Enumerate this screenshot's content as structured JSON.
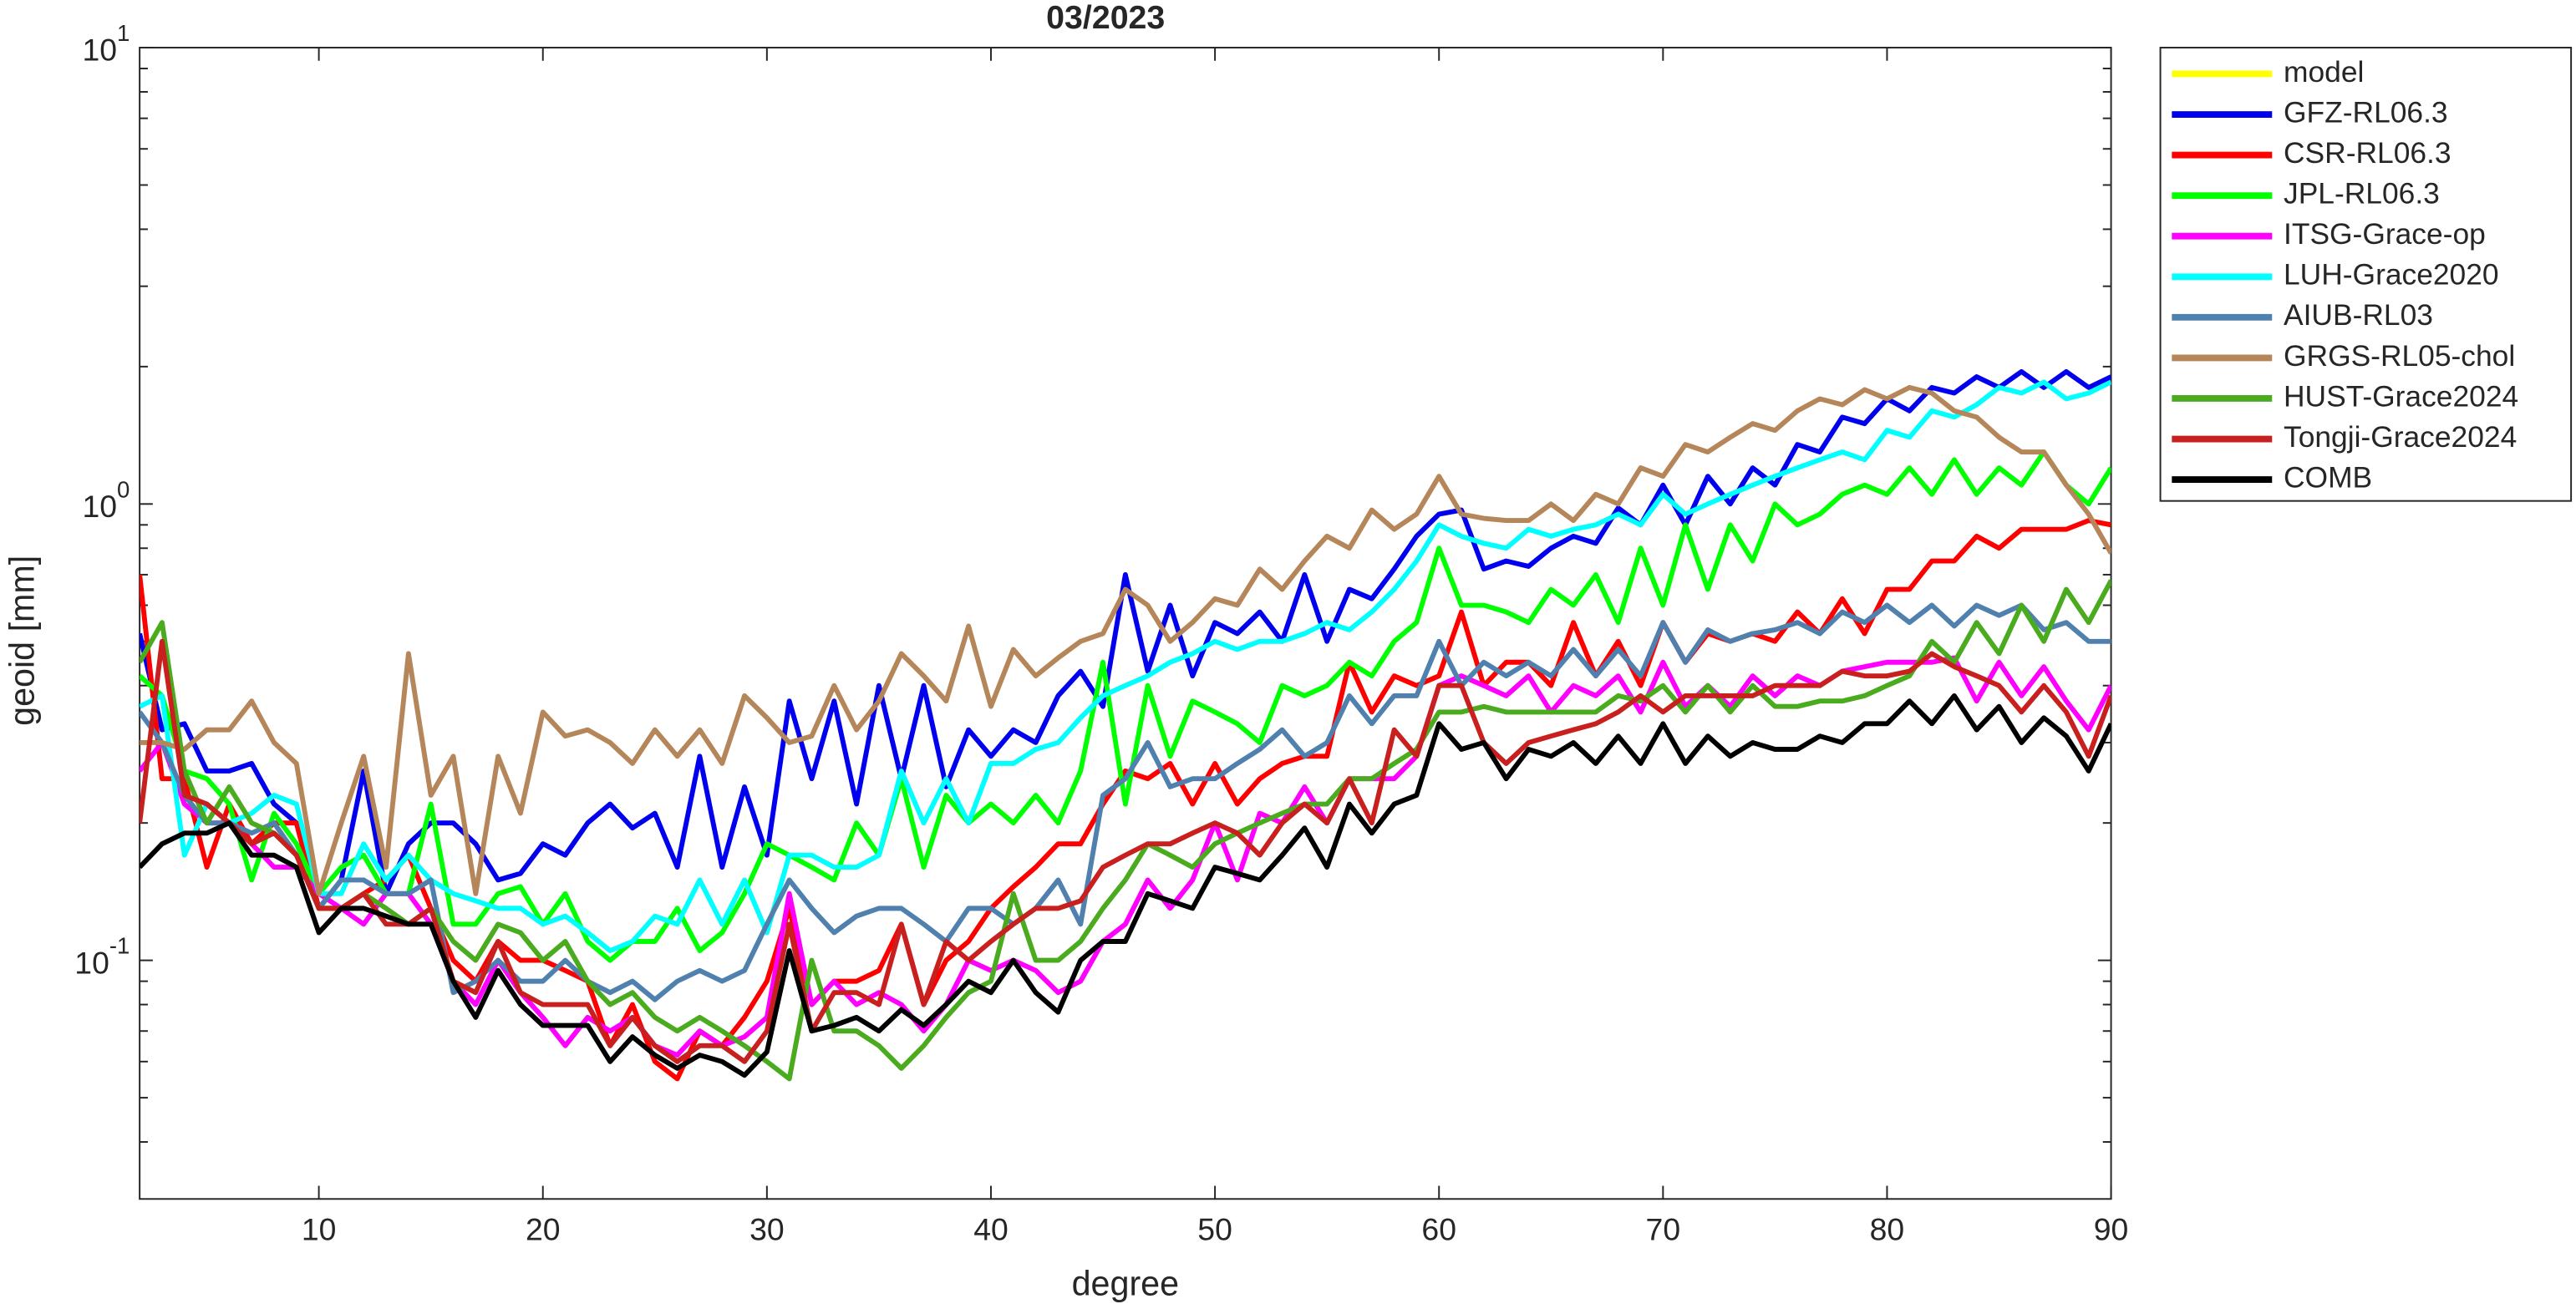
{
  "chart_data": {
    "type": "line",
    "title": "03/2023",
    "xlabel": "degree",
    "ylabel": "geoid [mm]",
    "yscale": "log",
    "xlim": [
      2,
      90
    ],
    "ylim": [
      0.03,
      10
    ],
    "xticks": [
      10,
      20,
      30,
      40,
      50,
      60,
      70,
      80,
      90
    ],
    "yticks": [
      {
        "value": 0.1,
        "label": "10^-1"
      },
      {
        "value": 1,
        "label": "10^0"
      },
      {
        "value": 10,
        "label": "10^1"
      }
    ],
    "yminor_ticks": [
      0.04,
      0.05,
      0.06,
      0.07,
      0.08,
      0.09,
      0.2,
      0.3,
      0.4,
      0.5,
      0.6,
      0.7,
      0.8,
      0.9,
      2,
      3,
      4,
      5,
      6,
      7,
      8,
      9
    ],
    "legend": "outside-top-right",
    "x": [
      2,
      3,
      4,
      5,
      6,
      7,
      8,
      9,
      10,
      11,
      12,
      13,
      14,
      15,
      16,
      17,
      18,
      19,
      20,
      21,
      22,
      23,
      24,
      25,
      26,
      27,
      28,
      29,
      30,
      31,
      32,
      33,
      34,
      35,
      36,
      37,
      38,
      39,
      40,
      41,
      42,
      43,
      44,
      45,
      46,
      47,
      48,
      49,
      50,
      51,
      52,
      53,
      54,
      55,
      56,
      57,
      58,
      59,
      60,
      61,
      62,
      63,
      64,
      65,
      66,
      67,
      68,
      69,
      70,
      71,
      72,
      73,
      74,
      75,
      76,
      77,
      78,
      79,
      80,
      81,
      82,
      83,
      84,
      85,
      86,
      87,
      88,
      89,
      90
    ],
    "series": [
      {
        "name": "model",
        "color": "#ffff00",
        "values": [
          null,
          null,
          null,
          null,
          null,
          null,
          null,
          null,
          null,
          null,
          null,
          null,
          null,
          null,
          null,
          null,
          null,
          null,
          null,
          null,
          null,
          null,
          null,
          null,
          null,
          null,
          null,
          null,
          null,
          null,
          null,
          null,
          null,
          null,
          null,
          null,
          null,
          null,
          null,
          null,
          null,
          null,
          null,
          null,
          null,
          null,
          null,
          null,
          null,
          null,
          null,
          null,
          null,
          null,
          null,
          null,
          null,
          null,
          null,
          null,
          null,
          null,
          null,
          null,
          null,
          null,
          null,
          null,
          null,
          null,
          null,
          null,
          null,
          null,
          null,
          null,
          null,
          null,
          null,
          null,
          null,
          null,
          null,
          null,
          null,
          null,
          null,
          null,
          null
        ]
      },
      {
        "name": "GFZ-RL06.3",
        "color": "#0000ee",
        "values": [
          0.52,
          0.32,
          0.33,
          0.26,
          0.26,
          0.27,
          0.22,
          0.2,
          0.13,
          0.15,
          0.26,
          0.14,
          0.18,
          0.2,
          0.2,
          0.18,
          0.15,
          0.155,
          0.18,
          0.17,
          0.2,
          0.22,
          0.195,
          0.21,
          0.16,
          0.28,
          0.16,
          0.24,
          0.17,
          0.37,
          0.25,
          0.37,
          0.22,
          0.4,
          0.25,
          0.4,
          0.24,
          0.32,
          0.28,
          0.32,
          0.3,
          0.38,
          0.43,
          0.36,
          0.7,
          0.43,
          0.6,
          0.42,
          0.55,
          0.52,
          0.58,
          0.5,
          0.7,
          0.5,
          0.65,
          0.62,
          0.72,
          0.85,
          0.95,
          0.97,
          0.72,
          0.75,
          0.73,
          0.8,
          0.85,
          0.82,
          0.98,
          0.9,
          1.1,
          0.9,
          1.15,
          1.0,
          1.2,
          1.1,
          1.35,
          1.3,
          1.55,
          1.5,
          1.7,
          1.6,
          1.8,
          1.75,
          1.9,
          1.8,
          1.95,
          1.8,
          1.95,
          1.8,
          1.9
        ]
      },
      {
        "name": "CSR-RL06.3",
        "color": "#ff0000",
        "values": [
          0.7,
          0.25,
          0.25,
          0.16,
          0.22,
          0.18,
          0.2,
          0.2,
          0.13,
          0.13,
          0.14,
          0.15,
          0.17,
          0.13,
          0.1,
          0.09,
          0.11,
          0.1,
          0.1,
          0.095,
          0.09,
          0.065,
          0.08,
          0.06,
          0.055,
          0.07,
          0.065,
          0.075,
          0.09,
          0.13,
          0.08,
          0.09,
          0.09,
          0.095,
          0.12,
          0.08,
          0.1,
          0.11,
          0.13,
          0.145,
          0.16,
          0.18,
          0.18,
          0.22,
          0.26,
          0.25,
          0.27,
          0.22,
          0.27,
          0.22,
          0.25,
          0.27,
          0.28,
          0.28,
          0.45,
          0.35,
          0.42,
          0.4,
          0.42,
          0.58,
          0.4,
          0.45,
          0.45,
          0.4,
          0.55,
          0.42,
          0.5,
          0.4,
          0.55,
          0.45,
          0.52,
          0.5,
          0.52,
          0.5,
          0.58,
          0.52,
          0.62,
          0.52,
          0.65,
          0.65,
          0.75,
          0.75,
          0.85,
          0.8,
          0.88,
          0.88,
          0.88,
          0.92,
          0.9
        ]
      },
      {
        "name": "JPL-RL06.3",
        "color": "#00ff00",
        "values": [
          0.42,
          0.38,
          0.26,
          0.25,
          0.22,
          0.15,
          0.21,
          0.18,
          0.14,
          0.16,
          0.17,
          0.14,
          0.14,
          0.22,
          0.12,
          0.12,
          0.14,
          0.145,
          0.12,
          0.14,
          0.11,
          0.1,
          0.11,
          0.11,
          0.13,
          0.105,
          0.115,
          0.14,
          0.18,
          0.17,
          0.16,
          0.15,
          0.2,
          0.17,
          0.25,
          0.16,
          0.23,
          0.2,
          0.22,
          0.2,
          0.23,
          0.2,
          0.26,
          0.45,
          0.22,
          0.4,
          0.28,
          0.37,
          0.35,
          0.33,
          0.3,
          0.4,
          0.38,
          0.4,
          0.45,
          0.42,
          0.5,
          0.55,
          0.8,
          0.6,
          0.6,
          0.58,
          0.55,
          0.65,
          0.6,
          0.7,
          0.55,
          0.8,
          0.6,
          0.9,
          0.65,
          0.9,
          0.75,
          1.0,
          0.9,
          0.95,
          1.05,
          1.1,
          1.05,
          1.2,
          1.05,
          1.25,
          1.05,
          1.2,
          1.1,
          1.3,
          1.1,
          1.0,
          1.2
        ]
      },
      {
        "name": "ITSG-Grace-op",
        "color": "#ff00ff",
        "values": [
          0.26,
          0.3,
          0.22,
          0.2,
          0.2,
          0.18,
          0.16,
          0.16,
          0.14,
          0.13,
          0.12,
          0.14,
          0.14,
          0.12,
          0.09,
          0.08,
          0.1,
          0.085,
          0.075,
          0.065,
          0.075,
          0.07,
          0.075,
          0.065,
          0.062,
          0.07,
          0.065,
          0.068,
          0.075,
          0.14,
          0.08,
          0.09,
          0.08,
          0.085,
          0.08,
          0.07,
          0.08,
          0.1,
          0.095,
          0.1,
          0.095,
          0.085,
          0.09,
          0.11,
          0.12,
          0.15,
          0.13,
          0.15,
          0.2,
          0.15,
          0.21,
          0.2,
          0.24,
          0.2,
          0.25,
          0.25,
          0.25,
          0.28,
          0.4,
          0.42,
          0.4,
          0.38,
          0.42,
          0.35,
          0.4,
          0.38,
          0.42,
          0.35,
          0.45,
          0.36,
          0.4,
          0.36,
          0.42,
          0.38,
          0.42,
          0.4,
          0.43,
          0.44,
          0.45,
          0.45,
          0.45,
          0.46,
          0.37,
          0.45,
          0.38,
          0.44,
          0.37,
          0.32,
          0.4
        ]
      },
      {
        "name": "LUH-Grace2020",
        "color": "#00ffff",
        "values": [
          0.36,
          0.38,
          0.17,
          0.22,
          0.2,
          0.21,
          0.23,
          0.22,
          0.14,
          0.14,
          0.18,
          0.15,
          0.17,
          0.15,
          0.14,
          0.135,
          0.13,
          0.13,
          0.12,
          0.125,
          0.115,
          0.105,
          0.11,
          0.125,
          0.12,
          0.15,
          0.12,
          0.15,
          0.115,
          0.17,
          0.17,
          0.16,
          0.16,
          0.17,
          0.26,
          0.2,
          0.25,
          0.2,
          0.27,
          0.27,
          0.29,
          0.3,
          0.34,
          0.38,
          0.4,
          0.42,
          0.45,
          0.47,
          0.5,
          0.48,
          0.5,
          0.5,
          0.52,
          0.55,
          0.53,
          0.58,
          0.65,
          0.75,
          0.9,
          0.85,
          0.82,
          0.8,
          0.88,
          0.85,
          0.88,
          0.9,
          0.95,
          0.9,
          1.05,
          0.95,
          1.0,
          1.05,
          1.1,
          1.15,
          1.2,
          1.25,
          1.3,
          1.25,
          1.45,
          1.4,
          1.6,
          1.55,
          1.65,
          1.8,
          1.75,
          1.85,
          1.7,
          1.75,
          1.85
        ]
      },
      {
        "name": "AIUB-RL03",
        "color": "#5080ad",
        "values": [
          0.35,
          0.3,
          0.23,
          0.2,
          0.2,
          0.19,
          0.2,
          0.17,
          0.13,
          0.15,
          0.15,
          0.14,
          0.14,
          0.15,
          0.085,
          0.09,
          0.1,
          0.09,
          0.09,
          0.1,
          0.09,
          0.085,
          0.09,
          0.082,
          0.09,
          0.095,
          0.09,
          0.095,
          0.12,
          0.15,
          0.13,
          0.115,
          0.125,
          0.13,
          0.13,
          0.12,
          0.11,
          0.13,
          0.13,
          0.12,
          0.13,
          0.15,
          0.12,
          0.23,
          0.25,
          0.3,
          0.24,
          0.25,
          0.25,
          0.27,
          0.29,
          0.32,
          0.28,
          0.3,
          0.38,
          0.33,
          0.38,
          0.38,
          0.5,
          0.4,
          0.45,
          0.42,
          0.45,
          0.42,
          0.48,
          0.42,
          0.48,
          0.42,
          0.55,
          0.45,
          0.53,
          0.5,
          0.52,
          0.53,
          0.55,
          0.52,
          0.58,
          0.55,
          0.6,
          0.55,
          0.6,
          0.54,
          0.6,
          0.57,
          0.6,
          0.53,
          0.55,
          0.5,
          0.5
        ]
      },
      {
        "name": "GRGS-RL05-chol",
        "color": "#b5865a",
        "values": [
          0.3,
          0.3,
          0.29,
          0.32,
          0.32,
          0.37,
          0.3,
          0.27,
          0.14,
          0.2,
          0.28,
          0.16,
          0.47,
          0.23,
          0.28,
          0.14,
          0.28,
          0.21,
          0.35,
          0.31,
          0.32,
          0.3,
          0.27,
          0.32,
          0.28,
          0.32,
          0.27,
          0.38,
          0.34,
          0.3,
          0.31,
          0.4,
          0.32,
          0.37,
          0.47,
          0.42,
          0.37,
          0.54,
          0.36,
          0.48,
          0.42,
          0.46,
          0.5,
          0.52,
          0.65,
          0.6,
          0.5,
          0.55,
          0.62,
          0.6,
          0.72,
          0.65,
          0.75,
          0.85,
          0.8,
          0.97,
          0.88,
          0.95,
          1.15,
          0.95,
          0.93,
          0.92,
          0.92,
          1.0,
          0.92,
          1.05,
          1.0,
          1.2,
          1.15,
          1.35,
          1.3,
          1.4,
          1.5,
          1.45,
          1.6,
          1.7,
          1.65,
          1.78,
          1.7,
          1.8,
          1.75,
          1.6,
          1.55,
          1.4,
          1.3,
          1.3,
          1.1,
          0.95,
          0.78
        ]
      },
      {
        "name": "HUST-Grace2024",
        "color": "#4aab1e",
        "values": [
          0.45,
          0.55,
          0.26,
          0.2,
          0.24,
          0.2,
          0.19,
          0.17,
          0.13,
          0.13,
          0.14,
          0.13,
          0.12,
          0.13,
          0.11,
          0.1,
          0.12,
          0.115,
          0.1,
          0.11,
          0.09,
          0.08,
          0.085,
          0.075,
          0.07,
          0.075,
          0.07,
          0.065,
          0.06,
          0.055,
          0.1,
          0.07,
          0.07,
          0.065,
          0.058,
          0.065,
          0.075,
          0.085,
          0.09,
          0.14,
          0.1,
          0.1,
          0.11,
          0.13,
          0.15,
          0.18,
          0.17,
          0.16,
          0.18,
          0.19,
          0.2,
          0.21,
          0.22,
          0.22,
          0.25,
          0.25,
          0.27,
          0.29,
          0.35,
          0.35,
          0.36,
          0.35,
          0.35,
          0.35,
          0.35,
          0.35,
          0.38,
          0.37,
          0.4,
          0.35,
          0.4,
          0.35,
          0.4,
          0.36,
          0.36,
          0.37,
          0.37,
          0.38,
          0.4,
          0.42,
          0.5,
          0.45,
          0.55,
          0.47,
          0.6,
          0.5,
          0.65,
          0.55,
          0.68
        ]
      },
      {
        "name": "Tongji-Grace2024",
        "color": "#c8201e",
        "values": [
          0.2,
          0.5,
          0.23,
          0.22,
          0.2,
          0.18,
          0.19,
          0.17,
          0.13,
          0.13,
          0.14,
          0.12,
          0.12,
          0.13,
          0.09,
          0.085,
          0.11,
          0.085,
          0.08,
          0.08,
          0.08,
          0.065,
          0.075,
          0.065,
          0.06,
          0.065,
          0.065,
          0.06,
          0.07,
          0.12,
          0.07,
          0.085,
          0.085,
          0.08,
          0.12,
          0.08,
          0.11,
          0.1,
          0.11,
          0.12,
          0.13,
          0.13,
          0.135,
          0.16,
          0.17,
          0.18,
          0.18,
          0.19,
          0.2,
          0.19,
          0.17,
          0.2,
          0.22,
          0.2,
          0.25,
          0.2,
          0.32,
          0.28,
          0.4,
          0.4,
          0.3,
          0.27,
          0.3,
          0.31,
          0.32,
          0.33,
          0.35,
          0.38,
          0.35,
          0.38,
          0.38,
          0.38,
          0.38,
          0.4,
          0.4,
          0.4,
          0.43,
          0.42,
          0.42,
          0.43,
          0.47,
          0.44,
          0.42,
          0.4,
          0.35,
          0.4,
          0.35,
          0.28,
          0.38
        ]
      },
      {
        "name": "COMB",
        "color": "#000000",
        "values": [
          0.16,
          0.18,
          0.19,
          0.19,
          0.2,
          0.17,
          0.17,
          0.16,
          0.115,
          0.13,
          0.13,
          0.125,
          0.12,
          0.12,
          0.09,
          0.075,
          0.095,
          0.08,
          0.072,
          0.072,
          0.072,
          0.06,
          0.068,
          0.062,
          0.058,
          0.062,
          0.06,
          0.056,
          0.063,
          0.105,
          0.07,
          0.072,
          0.075,
          0.07,
          0.078,
          0.072,
          0.08,
          0.09,
          0.085,
          0.1,
          0.085,
          0.077,
          0.1,
          0.11,
          0.11,
          0.14,
          0.135,
          0.13,
          0.16,
          0.155,
          0.15,
          0.17,
          0.195,
          0.16,
          0.22,
          0.19,
          0.22,
          0.23,
          0.33,
          0.29,
          0.3,
          0.25,
          0.29,
          0.28,
          0.3,
          0.27,
          0.31,
          0.27,
          0.33,
          0.27,
          0.31,
          0.28,
          0.3,
          0.29,
          0.29,
          0.31,
          0.3,
          0.33,
          0.33,
          0.37,
          0.33,
          0.38,
          0.32,
          0.36,
          0.3,
          0.34,
          0.31,
          0.26,
          0.33
        ]
      }
    ]
  }
}
